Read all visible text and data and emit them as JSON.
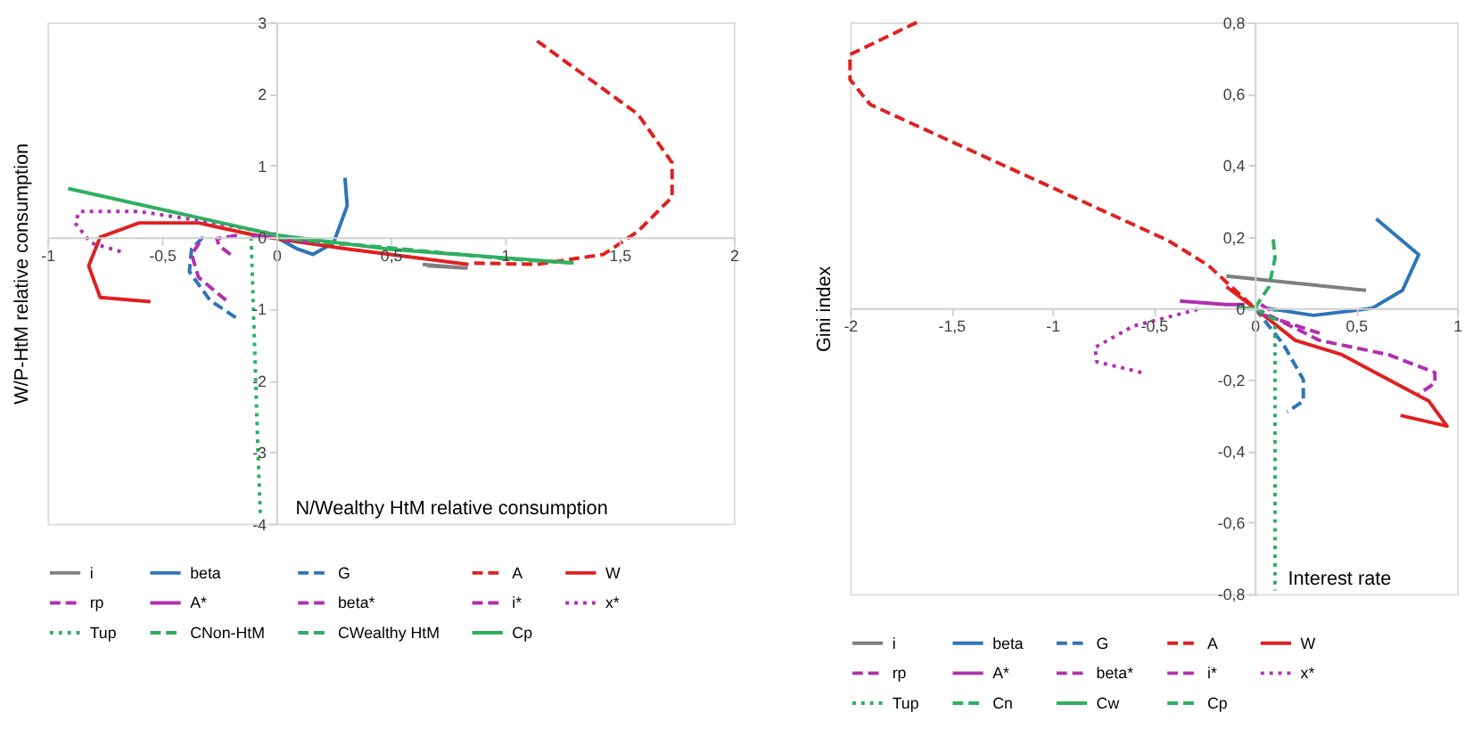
{
  "chart_data": [
    {
      "type": "line",
      "xlabel": "N/Wealthy HtM relative consumption",
      "ylabel": "W/P-HtM relative consumption",
      "legend": "bottom",
      "xlim": [
        -1,
        2
      ],
      "xticks": [
        -1,
        {
          "value": -0.5,
          "label": "-0,5"
        },
        0,
        {
          "value": 0.5,
          "label": "0,5"
        },
        1,
        {
          "value": 1.5,
          "label": "1,5"
        },
        2
      ],
      "ylim": [
        -4,
        3
      ],
      "yticks": [
        -4,
        -3,
        -2,
        -1,
        0,
        1,
        2,
        3
      ],
      "series": [
        {
          "name": "i",
          "color": "#7f7f7f",
          "line_style": "solid",
          "x": [
            0.64,
            0.83,
            0.66
          ],
          "values": [
            -0.38,
            -0.43,
            -0.4
          ]
        },
        {
          "name": "beta",
          "color": "#2e75b6",
          "line_style": "solid",
          "x": [
            0,
            0.09,
            0.16,
            0.25,
            0.31,
            0.3
          ],
          "values": [
            0,
            -0.16,
            -0.24,
            -0.08,
            0.44,
            0.83
          ]
        },
        {
          "name": "G",
          "color": "#2e75b6",
          "line_style": "dashed",
          "x": [
            -0.32,
            -0.37,
            -0.38,
            -0.29,
            -0.16
          ],
          "values": [
            0,
            -0.16,
            -0.48,
            -0.88,
            -1.16
          ]
        },
        {
          "name": "A",
          "color": "#e02020",
          "line_style": "dashed",
          "x": [
            1.14,
            1.58,
            1.73,
            1.73,
            1.58,
            1.43,
            1.14,
            0.85
          ],
          "values": [
            2.74,
            1.72,
            1.04,
            0.56,
            0.08,
            -0.24,
            -0.38,
            -0.36
          ]
        },
        {
          "name": "W",
          "color": "#e02020",
          "line_style": "solid",
          "x": [
            -0.55,
            -0.77,
            -0.82,
            -0.77,
            -0.6,
            -0.34,
            -0.11,
            0,
            0.3,
            0.84
          ],
          "values": [
            -0.9,
            -0.84,
            -0.4,
            0,
            0.2,
            0.2,
            0.04,
            -0.02,
            -0.16,
            -0.38
          ]
        },
        {
          "name": "rp",
          "color": "#b030b0",
          "line_style": "dashed",
          "x": [
            -0.22,
            -0.34,
            -0.37,
            -0.32
          ],
          "values": [
            -0.88,
            -0.56,
            -0.24,
            0
          ]
        },
        {
          "name": "A*",
          "color": "#b030b0",
          "line_style": "solid",
          "x": [
            -0.11,
            0
          ],
          "values": [
            0.02,
            0
          ]
        },
        {
          "name": "beta*",
          "color": "#b030b0",
          "line_style": "dashed",
          "x": [
            -0.2,
            -0.25,
            -0.26,
            -0.16
          ],
          "values": [
            -0.24,
            -0.12,
            -0.02,
            0.03
          ]
        },
        {
          "name": "i*",
          "color": "#b030b0",
          "line_style": "dashed",
          "x": [
            0.03,
            0.19
          ],
          "values": [
            -0.02,
            -0.08
          ]
        },
        {
          "name": "x*",
          "color": "#b030b0",
          "line_style": "dotted",
          "x": [
            -0.68,
            -0.81,
            -0.88,
            -0.86,
            -0.6,
            -0.27,
            0
          ],
          "values": [
            -0.2,
            -0.08,
            0.2,
            0.36,
            0.36,
            0.2,
            0.04
          ]
        },
        {
          "name": "Tup",
          "color": "#2eb060",
          "line_style": "dotted",
          "x": [
            -0.11,
            -0.1,
            -0.09,
            -0.08,
            -0.07
          ],
          "values": [
            0,
            -1,
            -2,
            -3,
            -3.85
          ]
        },
        {
          "name": "CNon-HtM",
          "color": "#2eb060",
          "line_style": "dashed",
          "x": [
            0,
            0.5,
            1,
            1.3
          ],
          "values": [
            0,
            -0.15,
            -0.3,
            -0.36
          ]
        },
        {
          "name": "CWealthy HtM",
          "color": "#2eb060",
          "line_style": "dashed",
          "x": [
            0,
            0.3
          ],
          "values": [
            0,
            -0.1
          ]
        },
        {
          "name": "Cp",
          "color": "#2eb060",
          "line_style": "solid",
          "x": [
            -0.91,
            0,
            0.5,
            1.3
          ],
          "values": [
            0.68,
            0.03,
            -0.17,
            -0.36
          ]
        }
      ]
    },
    {
      "type": "line",
      "xlabel": "Interest rate",
      "ylabel": "Gini index",
      "legend": "bottom",
      "xlim": [
        -2,
        1
      ],
      "xticks": [
        -2,
        {
          "value": -1.5,
          "label": "-1,5"
        },
        -1,
        {
          "value": -0.5,
          "label": "-0,5"
        },
        0,
        {
          "value": 0.5,
          "label": "0,5"
        },
        1
      ],
      "ylim": [
        -0.8,
        0.8
      ],
      "yticks": [
        {
          "value": -0.8,
          "label": "-0,8"
        },
        {
          "value": -0.6,
          "label": "-0,6"
        },
        {
          "value": -0.4,
          "label": "-0,4"
        },
        {
          "value": -0.2,
          "label": "-0,2"
        },
        0,
        {
          "value": 0.2,
          "label": "0,2"
        },
        {
          "value": 0.4,
          "label": "0,4"
        },
        {
          "value": 0.6,
          "label": "0,6"
        },
        {
          "value": 0.8,
          "label": "0,8"
        }
      ],
      "series": [
        {
          "name": "i",
          "color": "#7f7f7f",
          "line_style": "solid",
          "x": [
            -0.14,
            0.55
          ],
          "values": [
            0.09,
            0.05
          ]
        },
        {
          "name": "beta",
          "color": "#2e75b6",
          "line_style": "solid",
          "x": [
            0.06,
            0.29,
            0.58,
            0.73,
            0.81,
            0.6
          ],
          "values": [
            0,
            -0.02,
            0,
            0.05,
            0.15,
            0.25
          ]
        },
        {
          "name": "G",
          "color": "#2e75b6",
          "line_style": "dashed",
          "x": [
            0,
            0.14,
            0.24,
            0.24,
            0.16
          ],
          "values": [
            0,
            -0.1,
            -0.2,
            -0.26,
            -0.29
          ]
        },
        {
          "name": "A",
          "color": "#e02020",
          "line_style": "dashed",
          "x": [
            -1.67,
            -2,
            -2,
            -1.9,
            -1.01,
            -0.43,
            -0.23,
            0
          ],
          "values": [
            0.8,
            0.71,
            0.64,
            0.57,
            0.34,
            0.19,
            0.12,
            0
          ]
        },
        {
          "name": "W",
          "color": "#e02020",
          "line_style": "solid",
          "x": [
            -0.14,
            0,
            0.2,
            0.43,
            0.86,
            0.95,
            0.72
          ],
          "values": [
            0.06,
            0,
            -0.09,
            -0.13,
            -0.26,
            -0.33,
            -0.3
          ]
        },
        {
          "name": "rp",
          "color": "#b030b0",
          "line_style": "dashed",
          "x": [
            0,
            0.32,
            0.66,
            0.89,
            0.89,
            0.81
          ],
          "values": [
            0,
            -0.09,
            -0.13,
            -0.18,
            -0.21,
            -0.24
          ]
        },
        {
          "name": "A*",
          "color": "#b030b0",
          "line_style": "solid",
          "x": [
            -0.37,
            -0.14,
            -0.05
          ],
          "values": [
            0.02,
            0.01,
            0.01
          ]
        },
        {
          "name": "beta*",
          "color": "#b030b0",
          "line_style": "dashed",
          "x": [
            0.05,
            0.32
          ],
          "values": [
            -0.02,
            -0.07
          ]
        },
        {
          "name": "i*",
          "color": "#b030b0",
          "line_style": "dashed",
          "x": [
            0.03,
            0.09
          ],
          "values": [
            0.01,
            -0.01
          ]
        },
        {
          "name": "x*",
          "color": "#b030b0",
          "line_style": "dotted",
          "x": [
            -0.56,
            -0.78,
            -0.79,
            -0.6,
            -0.26
          ],
          "values": [
            -0.18,
            -0.15,
            -0.11,
            -0.05,
            0
          ]
        },
        {
          "name": "Tup",
          "color": "#2eb060",
          "line_style": "dotted",
          "x": [
            0.1,
            0.1,
            0.1
          ],
          "values": [
            0,
            -0.4,
            -0.79
          ]
        },
        {
          "name": "Cn",
          "color": "#2eb060",
          "line_style": "dashed",
          "x": [
            0,
            0.07,
            0.1,
            0.09
          ],
          "values": [
            0,
            0.06,
            0.14,
            0.2
          ]
        },
        {
          "name": "Cw",
          "color": "#2eb060",
          "line_style": "solid",
          "x": [
            -0.09,
            0
          ],
          "values": [
            0,
            0
          ]
        },
        {
          "name": "Cp",
          "color": "#2eb060",
          "line_style": "dashed",
          "x": [
            0,
            0.09
          ],
          "values": [
            0,
            -0.03
          ]
        }
      ]
    }
  ]
}
